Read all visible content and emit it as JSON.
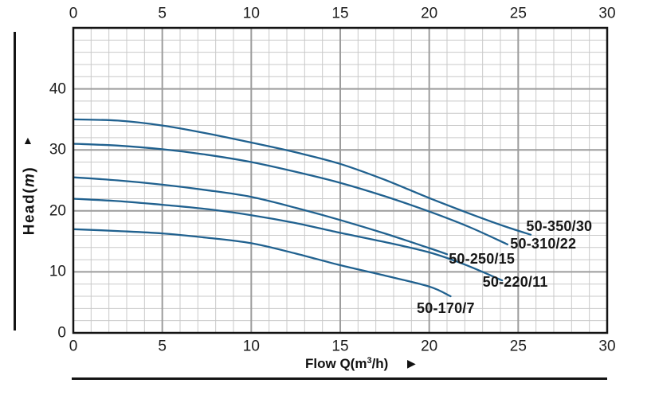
{
  "chart_data": {
    "type": "line",
    "title": "",
    "xlabel": "Flow Q(m³/h)",
    "ylabel": "Head(m)",
    "xlim": [
      0,
      30
    ],
    "ylim": [
      0,
      50
    ],
    "x_major_step": 5,
    "x_minor_step": 1,
    "y_major_step": 10,
    "y_minor_step": 2,
    "grid": "major-and-minor",
    "legend_position": "inline-curve-labels",
    "series": [
      {
        "name": "50-350/30",
        "points": [
          [
            0,
            35
          ],
          [
            2.5,
            34.8
          ],
          [
            5,
            34
          ],
          [
            7.5,
            32.7
          ],
          [
            10,
            31.2
          ],
          [
            12.5,
            29.6
          ],
          [
            15,
            27.7
          ],
          [
            17.5,
            25.1
          ],
          [
            20,
            22.1
          ],
          [
            22.5,
            19.3
          ],
          [
            24.2,
            17.5
          ],
          [
            25.7,
            16.1
          ]
        ],
        "label_pos": [
          25.45,
          17.5
        ]
      },
      {
        "name": "50-310/22",
        "points": [
          [
            0,
            31
          ],
          [
            2.5,
            30.7
          ],
          [
            5,
            30.1
          ],
          [
            7.5,
            29.2
          ],
          [
            10,
            28
          ],
          [
            12.5,
            26.4
          ],
          [
            15,
            24.6
          ],
          [
            17.5,
            22.4
          ],
          [
            20,
            19.9
          ],
          [
            22.3,
            17.3
          ],
          [
            24.4,
            14.5
          ]
        ],
        "label_pos": [
          24.55,
          14.6
        ]
      },
      {
        "name": "50-250/15",
        "points": [
          [
            0,
            25.5
          ],
          [
            2.5,
            25
          ],
          [
            5,
            24.3
          ],
          [
            7.5,
            23.4
          ],
          [
            10,
            22.3
          ],
          [
            12.5,
            20.5
          ],
          [
            15,
            18.5
          ],
          [
            17.5,
            16.3
          ],
          [
            20,
            13.9
          ],
          [
            21,
            12.9
          ]
        ],
        "label_pos": [
          21.1,
          12.1
        ]
      },
      {
        "name": "50-220/11",
        "points": [
          [
            0,
            22
          ],
          [
            2.5,
            21.6
          ],
          [
            5,
            21
          ],
          [
            7.5,
            20.3
          ],
          [
            10,
            19.3
          ],
          [
            12.5,
            18
          ],
          [
            15,
            16.4
          ],
          [
            17.5,
            14.9
          ],
          [
            20,
            13.2
          ],
          [
            22,
            11.2
          ],
          [
            24.1,
            8.6
          ]
        ],
        "label_pos": [
          23.0,
          8.3
        ]
      },
      {
        "name": "50-170/7",
        "points": [
          [
            0,
            17
          ],
          [
            2.5,
            16.7
          ],
          [
            5,
            16.3
          ],
          [
            7.5,
            15.6
          ],
          [
            10,
            14.7
          ],
          [
            12.5,
            13
          ],
          [
            15,
            11.1
          ],
          [
            17.5,
            9.4
          ],
          [
            20,
            7.6
          ],
          [
            21.2,
            6
          ]
        ],
        "label_pos": [
          19.3,
          4.0
        ]
      }
    ]
  },
  "axes": {
    "x": {
      "ticks_top": [
        "0",
        "5",
        "10",
        "15",
        "20",
        "25",
        "30"
      ],
      "ticks_bottom": [
        "0",
        "5",
        "10",
        "15",
        "20",
        "25",
        "30"
      ],
      "tick_values": [
        0,
        5,
        10,
        15,
        20,
        25,
        30
      ],
      "label_parts": {
        "prefix": "Flow Q(m",
        "sup": "3",
        "suffix": "/h)"
      },
      "arrow": "▶"
    },
    "y": {
      "ticks": [
        "0",
        "10",
        "20",
        "30",
        "40"
      ],
      "tick_values": [
        0,
        10,
        20,
        30,
        40
      ],
      "label_parts": {
        "prefix": "Head(",
        "italic": "m",
        "suffix": ")"
      },
      "arrow": "▲"
    }
  },
  "style": {
    "curve_color": "#20618f",
    "minor_grid_color": "#c9c9c9",
    "major_grid_color": "#9c9c9c",
    "border_color": "#141414",
    "text_color": "#1c1c1c",
    "background": "#ffffff"
  }
}
